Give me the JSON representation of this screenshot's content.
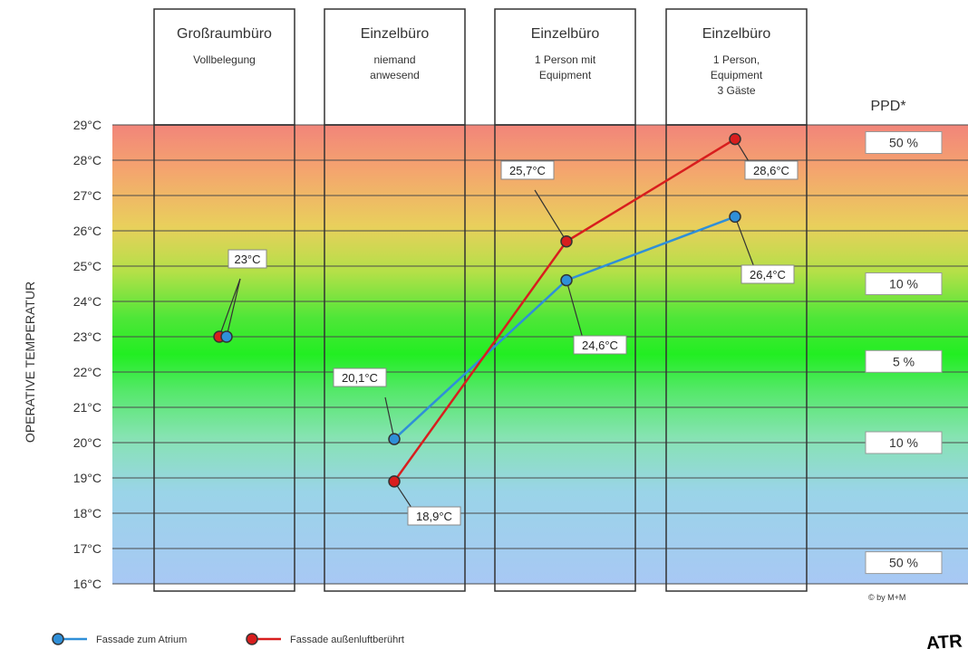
{
  "chart_data": {
    "type": "line",
    "ylabel": "OPERATIVE TEMPERATUR",
    "ylim": [
      16,
      29
    ],
    "y_ticks": [
      "16°C",
      "17°C",
      "18°C",
      "19°C",
      "20°C",
      "21°C",
      "22°C",
      "23°C",
      "24°C",
      "25°C",
      "26°C",
      "27°C",
      "28°C",
      "29°C"
    ],
    "grid": true,
    "background": "vertical gradient red (top) → green (middle) → blue (bottom)",
    "categories": [
      {
        "title": "Großraumbüro",
        "lines": [
          "Vollbelegung"
        ]
      },
      {
        "title": "Einzelbüro",
        "lines": [
          "niemand",
          "anwesend"
        ]
      },
      {
        "title": "Einzelbüro",
        "lines": [
          "1 Person mit",
          "Equipment"
        ]
      },
      {
        "title": "Einzelbüro",
        "lines": [
          "1 Person,",
          "Equipment",
          "3 Gäste"
        ]
      }
    ],
    "series": [
      {
        "name": "Fassade zum Atrium",
        "color": "#2f8fd8",
        "line_color": "#2f8fd8",
        "points": [
          {
            "cat": 0,
            "y": 23.0,
            "label": "23°C"
          },
          {
            "cat": 1,
            "y": 20.1,
            "label": "20,1°C"
          },
          {
            "cat": 2,
            "y": 24.6,
            "label": "24,6°C"
          },
          {
            "cat": 3,
            "y": 26.4,
            "label": "26,4°C"
          }
        ],
        "connect_from": 1
      },
      {
        "name": "Fassade außenluftberührt",
        "color": "#d81e1e",
        "line_color": "#d81e1e",
        "points": [
          {
            "cat": 0,
            "y": 23.0,
            "label": ""
          },
          {
            "cat": 1,
            "y": 18.9,
            "label": "18,9°C"
          },
          {
            "cat": 2,
            "y": 25.7,
            "label": "25,7°C"
          },
          {
            "cat": 3,
            "y": 28.6,
            "label": "28,6°C"
          }
        ],
        "connect_from": 1
      }
    ],
    "ppd": {
      "title": "PPD*",
      "labels": [
        {
          "text": "50 %",
          "y": 28.5
        },
        {
          "text": "10 %",
          "y": 24.5
        },
        {
          "text": "5 %",
          "y": 22.3
        },
        {
          "text": "10 %",
          "y": 20.0
        },
        {
          "text": "50 %",
          "y": 16.6
        }
      ]
    },
    "legend": {
      "placement": "bottom-left"
    },
    "copyright": "© by M+M",
    "cropped_label": "ATR"
  }
}
